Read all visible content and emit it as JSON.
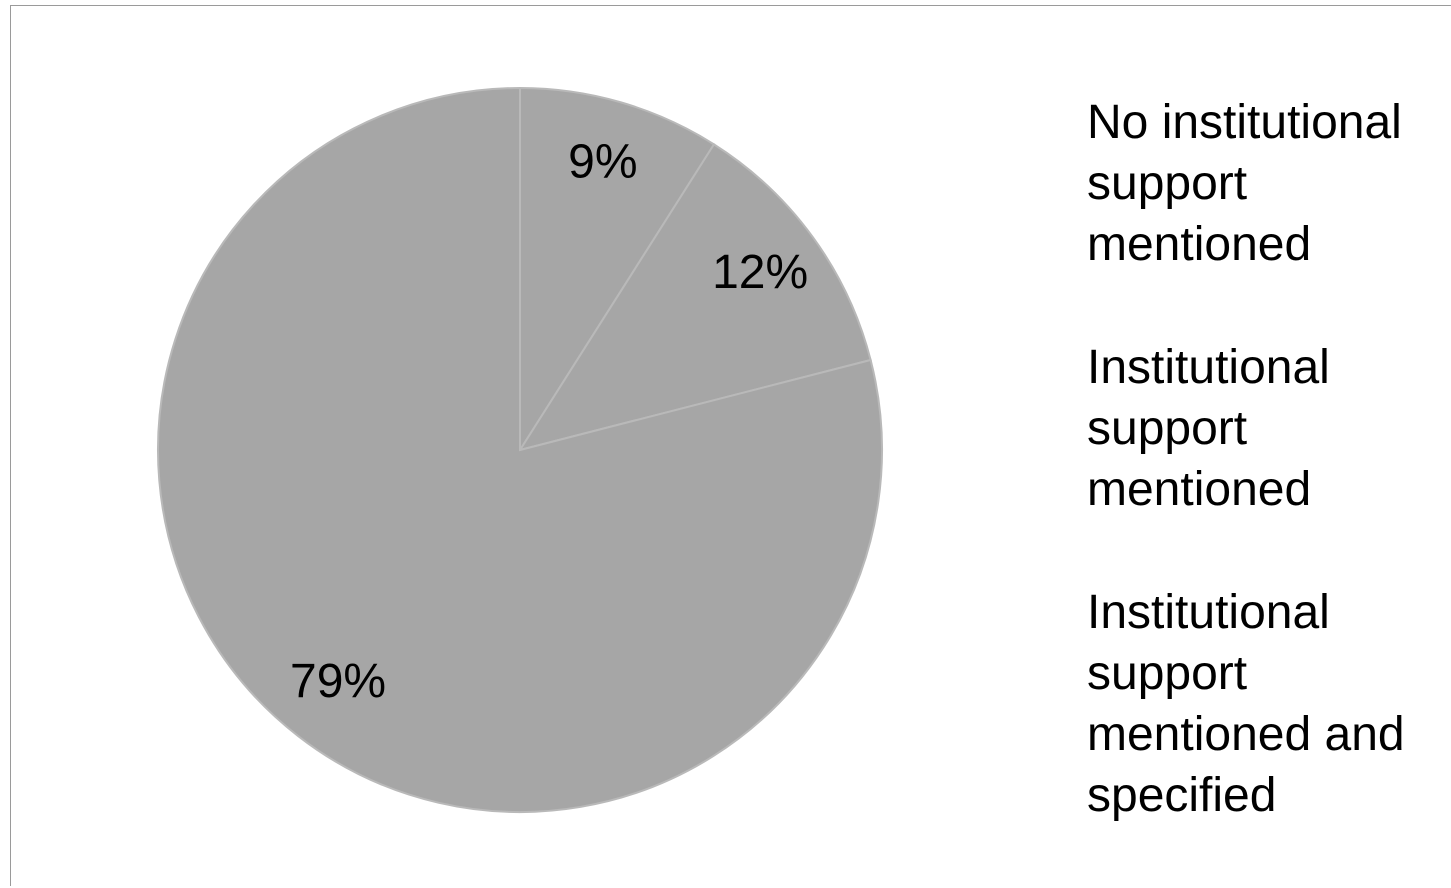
{
  "chart_data": {
    "type": "pie",
    "categories": [
      "No institutional support mentioned",
      "Institutional support mentioned",
      "Institutional support mentioned and specified"
    ],
    "values": [
      9,
      12,
      79
    ],
    "value_labels": [
      "9%",
      "12%",
      "79%"
    ],
    "colors": [
      "#a6a6a6",
      "#a6a6a6",
      "#a6a6a6"
    ],
    "legend": "right"
  }
}
